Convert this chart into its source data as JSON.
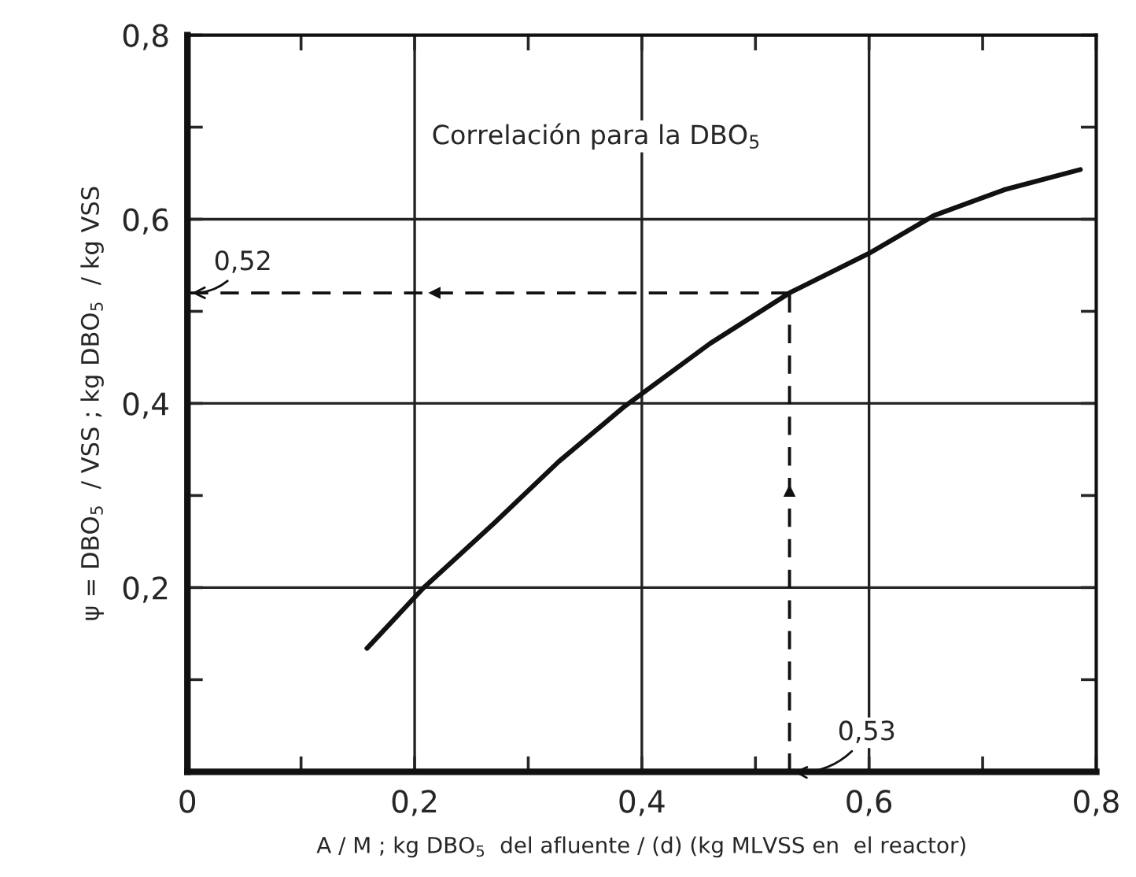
{
  "chart_data": {
    "type": "line",
    "xlabel": "A / M ; kg DBO$_{5}$  del afluente / (d) (kg MLVSS en  el reactor)",
    "ylabel": "ψ = DBO$_{5}$  / VSS ; kg DBO$_{5}$  / kg VSS",
    "xlim": [
      0,
      0.8
    ],
    "ylim": [
      0,
      0.8
    ],
    "xticks": [
      {
        "value": 0,
        "label": "0"
      },
      {
        "value": 0.1,
        "label": null
      },
      {
        "value": 0.2,
        "label": "0,2"
      },
      {
        "value": 0.3,
        "label": null
      },
      {
        "value": 0.4,
        "label": "0,4"
      },
      {
        "value": 0.5,
        "label": null
      },
      {
        "value": 0.6,
        "label": "0,6"
      },
      {
        "value": 0.7,
        "label": null
      },
      {
        "value": 0.8,
        "label": "0,8"
      }
    ],
    "yticks": [
      {
        "value": 0,
        "label": null
      },
      {
        "value": 0.1,
        "label": null
      },
      {
        "value": 0.2,
        "label": "0,2"
      },
      {
        "value": 0.3,
        "label": null
      },
      {
        "value": 0.4,
        "label": "0,4"
      },
      {
        "value": 0.5,
        "label": null
      },
      {
        "value": 0.6,
        "label": "0,6"
      },
      {
        "value": 0.7,
        "label": null
      },
      {
        "value": 0.8,
        "label": "0,8"
      }
    ],
    "grid": true,
    "series": [
      {
        "color": "#111111",
        "line_style": "solid",
        "x": [
          0.158,
          0.208,
          0.27,
          0.327,
          0.384,
          0.46,
          0.53,
          0.6,
          0.657,
          0.719,
          0.786
        ],
        "values": [
          0.134,
          0.2,
          0.27,
          0.337,
          0.396,
          0.465,
          0.52,
          0.563,
          0.604,
          0.632,
          0.654
        ]
      },
      {
        "color": "#111111",
        "line_style": "dashed",
        "x": [
          0.53,
          0
        ],
        "values": [
          0.52,
          0.52
        ]
      },
      {
        "color": "#111111",
        "line_style": "dashed",
        "x": [
          0.53,
          0.53
        ],
        "values": [
          0,
          0.52
        ]
      }
    ],
    "annotations": [
      "Correlación para la DBO$_{5}$",
      {
        "text": "0,52",
        "x": 0,
        "y": 0.52
      },
      {
        "text": "0,53",
        "x": 0.53,
        "y": 0
      }
    ]
  }
}
